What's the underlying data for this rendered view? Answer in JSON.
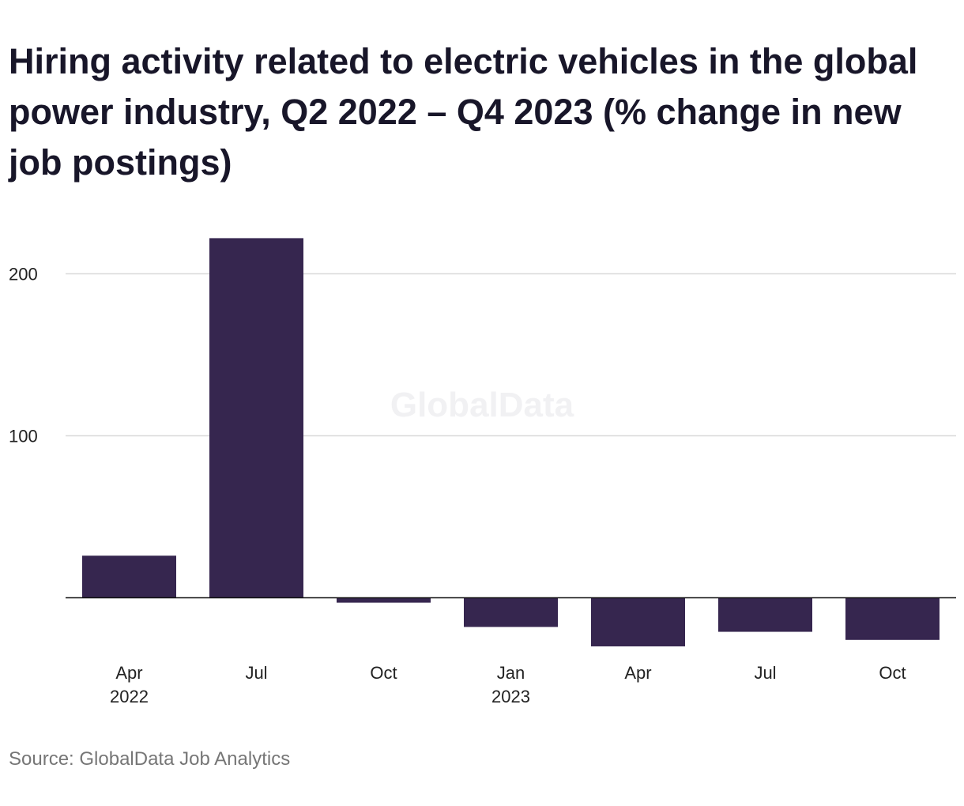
{
  "title": "Hiring activity related to electric vehicles in the global power industry, Q2 2022 – Q4 2023 (% change in new job postings)",
  "source": "Source: GlobalData Job Analytics",
  "watermark": "GlobalData",
  "colors": {
    "bar": "#36264f",
    "grid": "#d9d9d9",
    "axis": "#111111"
  },
  "chart_data": {
    "type": "bar",
    "title": "Hiring activity related to electric vehicles in the global power industry, Q2 2022 – Q4 2023 (% change in new job postings)",
    "xlabel": "",
    "ylabel": "",
    "categories": [
      {
        "label": "Apr",
        "year": "2022"
      },
      {
        "label": "Jul",
        "year": ""
      },
      {
        "label": "Oct",
        "year": ""
      },
      {
        "label": "Jan",
        "year": "2023"
      },
      {
        "label": "Apr",
        "year": ""
      },
      {
        "label": "Jul",
        "year": ""
      },
      {
        "label": "Oct",
        "year": ""
      }
    ],
    "values": [
      26,
      222,
      -3,
      -18,
      -30,
      -21,
      -26
    ],
    "yticks": [
      100,
      200
    ],
    "ylim": [
      -35,
      225
    ],
    "grid": true,
    "legend": "none"
  }
}
